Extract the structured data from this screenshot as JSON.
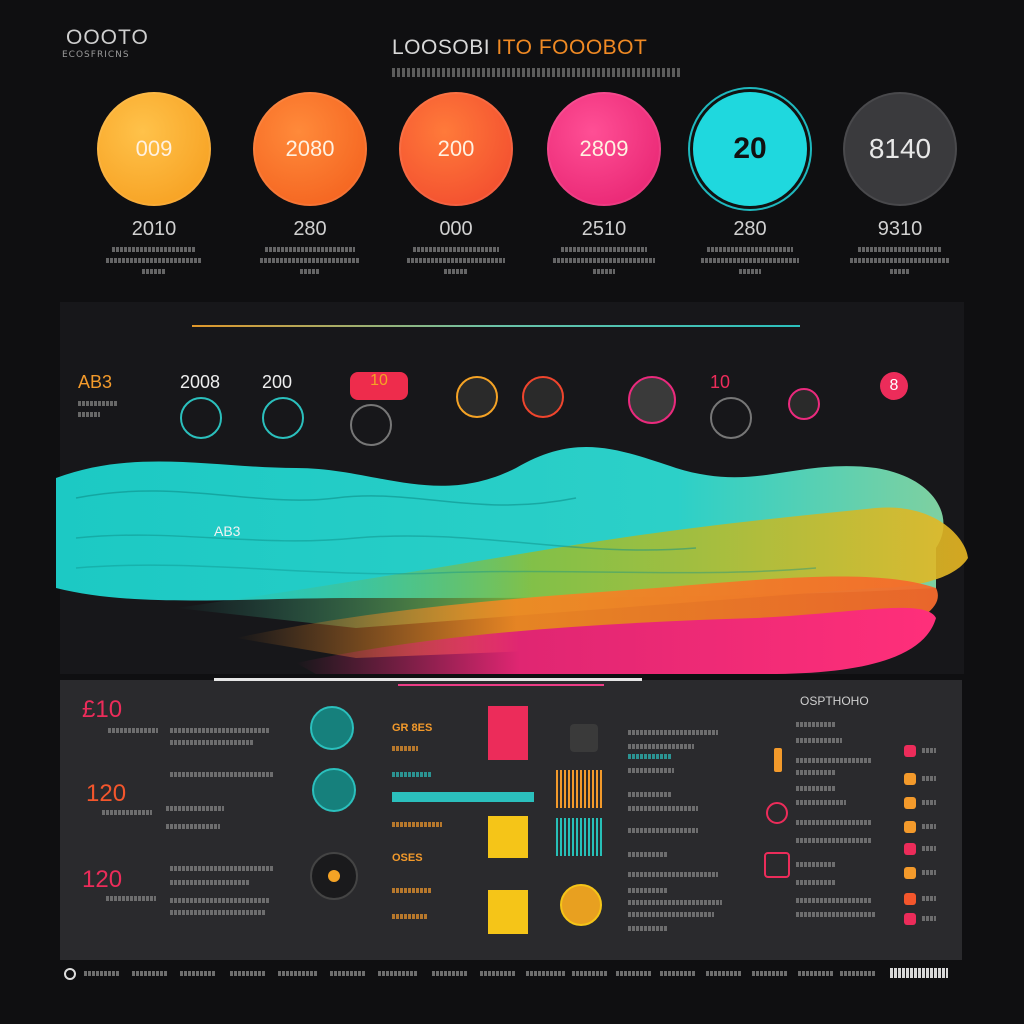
{
  "header": {
    "brand": "OOOTO",
    "brand_sub": "ECOSFRICNS",
    "title_left": "LOOSOBI",
    "title_right": "ITO FOOOBOT"
  },
  "stats": [
    {
      "circle_text": "009",
      "value": "2010",
      "color": "#f5a325"
    },
    {
      "circle_text": "2080",
      "value": "280",
      "color": "#f26a21"
    },
    {
      "circle_text": "200",
      "value": "000",
      "color": "#f4562c"
    },
    {
      "circle_text": "2809",
      "value": "2510",
      "color": "#ea2a7d"
    },
    {
      "circle_text": "20",
      "value": "280",
      "color": "#20d6dc"
    },
    {
      "circle_text": "8140",
      "value": "9310",
      "color": "#3d3d40"
    }
  ],
  "mid": {
    "items": [
      {
        "label": "AB3",
        "color": "#f39a2b"
      },
      {
        "label": "2008",
        "color": "#f2f2f2"
      },
      {
        "label": "200",
        "color": "#f2f2f2"
      },
      {
        "label": "10",
        "color": "#f0702a"
      },
      {
        "label": "",
        "color": "#f5a325"
      },
      {
        "label": "",
        "color": "#f0702a"
      },
      {
        "label": "",
        "color": "#ea2a7d"
      },
      {
        "label": "10",
        "color": "#ec2c5a"
      },
      {
        "label": "",
        "color": "#ea2a7d"
      },
      {
        "label": "8",
        "color": "#ec2c5a"
      }
    ],
    "wave_label": "AB3"
  },
  "bottom": {
    "nums": [
      {
        "text": "£10",
        "color": "#ec2c5a"
      },
      {
        "text": "120",
        "color": "#f4562c"
      },
      {
        "text": "120",
        "color": "#ec2c5a"
      }
    ],
    "orange_labels": [
      "GR 8ES",
      "OSES",
      "GRES"
    ],
    "right_heading": "OSPTHOHO"
  },
  "colors": {
    "accent_orange": "#f39a2b",
    "accent_teal": "#2bc0bd",
    "accent_pink": "#ec2c5a",
    "accent_yellow": "#f5c518"
  }
}
